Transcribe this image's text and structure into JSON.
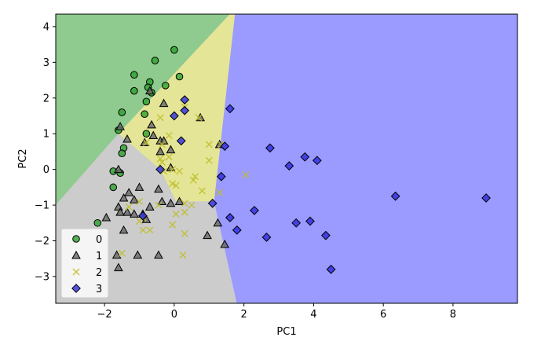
{
  "chart_data": {
    "type": "scatter",
    "title": "",
    "xlabel": "PC1",
    "ylabel": "PC2",
    "xlim": [
      -3.4,
      9.85
    ],
    "ylim": [
      -3.75,
      4.35
    ],
    "xticks": [
      -2,
      0,
      2,
      4,
      6,
      8
    ],
    "xtick_labels": [
      "−2",
      "0",
      "2",
      "4",
      "6",
      "8"
    ],
    "yticks": [
      -3,
      -2,
      -1,
      0,
      1,
      2,
      3,
      4
    ],
    "ytick_labels": [
      "−3",
      "−2",
      "−1",
      "0",
      "1",
      "2",
      "3",
      "4"
    ],
    "grid": false,
    "legend_position": "lower-left",
    "background": "decision-regions",
    "regions": [
      {
        "class": "0",
        "color": "#8fca8f",
        "polygon": [
          [
            -3.4,
            4.35
          ],
          [
            1.6,
            4.35
          ],
          [
            -1.6,
            1.0
          ],
          [
            -3.4,
            -1.0
          ]
        ]
      },
      {
        "class": "2",
        "color": "#e5e597",
        "polygon": [
          [
            1.6,
            4.35
          ],
          [
            1.75,
            4.35
          ],
          [
            1.15,
            -0.9
          ],
          [
            0.05,
            -0.9
          ],
          [
            -0.4,
            0.0
          ],
          [
            -1.6,
            1.0
          ]
        ]
      },
      {
        "class": "1",
        "color": "#cccccc",
        "polygon": [
          [
            -3.4,
            -1.0
          ],
          [
            -1.6,
            1.0
          ],
          [
            -0.4,
            0.0
          ],
          [
            0.05,
            -0.9
          ],
          [
            1.15,
            -0.9
          ],
          [
            1.8,
            -3.75
          ],
          [
            -3.4,
            -3.75
          ]
        ]
      },
      {
        "class": "3",
        "color": "#9a9aff",
        "polygon": [
          [
            1.75,
            4.35
          ],
          [
            9.85,
            4.35
          ],
          [
            9.85,
            -3.75
          ],
          [
            1.8,
            -3.75
          ],
          [
            1.15,
            -0.9
          ]
        ]
      }
    ],
    "series": [
      {
        "name": "0",
        "marker": "circle",
        "color": "#2ca02c",
        "points": [
          [
            0.0,
            3.35
          ],
          [
            -0.55,
            3.05
          ],
          [
            -1.15,
            2.65
          ],
          [
            -0.7,
            2.45
          ],
          [
            0.15,
            2.6
          ],
          [
            -0.75,
            2.3
          ],
          [
            -0.25,
            2.35
          ],
          [
            -1.15,
            2.2
          ],
          [
            -0.65,
            2.15
          ],
          [
            -0.8,
            1.9
          ],
          [
            -1.5,
            1.6
          ],
          [
            -0.85,
            1.55
          ],
          [
            -1.6,
            1.1
          ],
          [
            -0.8,
            1.0
          ],
          [
            -1.45,
            0.6
          ],
          [
            -1.5,
            0.45
          ],
          [
            -1.55,
            -0.1
          ],
          [
            -1.75,
            -0.05
          ],
          [
            -1.75,
            -0.5
          ],
          [
            -2.2,
            -1.5
          ]
        ]
      },
      {
        "name": "1",
        "marker": "triangle",
        "color": "#666666",
        "points": [
          [
            -0.7,
            2.2
          ],
          [
            -0.3,
            1.85
          ],
          [
            -1.55,
            1.2
          ],
          [
            -0.65,
            1.25
          ],
          [
            -1.35,
            0.85
          ],
          [
            -0.85,
            0.75
          ],
          [
            -0.4,
            0.8
          ],
          [
            -0.3,
            0.8
          ],
          [
            -0.4,
            0.5
          ],
          [
            -0.1,
            0.55
          ],
          [
            -0.1,
            0.05
          ],
          [
            -1.6,
            0.0
          ],
          [
            -1.0,
            -0.5
          ],
          [
            -1.3,
            -0.65
          ],
          [
            -1.15,
            -0.85
          ],
          [
            -1.45,
            -0.8
          ],
          [
            -0.35,
            -0.9
          ],
          [
            -0.1,
            -0.95
          ],
          [
            0.15,
            -0.9
          ],
          [
            -0.7,
            -1.05
          ],
          [
            -1.6,
            -1.05
          ],
          [
            -1.55,
            -1.2
          ],
          [
            -1.35,
            -1.2
          ],
          [
            -1.15,
            -1.25
          ],
          [
            -0.9,
            -1.25
          ],
          [
            -1.95,
            -1.35
          ],
          [
            -0.8,
            -1.4
          ],
          [
            1.25,
            -1.5
          ],
          [
            -1.45,
            -1.7
          ],
          [
            0.95,
            -1.85
          ],
          [
            1.45,
            -2.1
          ],
          [
            -1.05,
            -2.4
          ],
          [
            -1.65,
            -2.4
          ],
          [
            -0.45,
            -2.4
          ],
          [
            -1.6,
            -2.75
          ],
          [
            0.75,
            1.45
          ],
          [
            -0.6,
            0.95
          ],
          [
            1.3,
            0.7
          ],
          [
            -0.45,
            -0.55
          ]
        ]
      },
      {
        "name": "2",
        "marker": "x",
        "color": "#bfbf2e",
        "points": [
          [
            0.3,
            1.75
          ],
          [
            0.7,
            1.45
          ],
          [
            -0.4,
            1.45
          ],
          [
            -0.15,
            0.95
          ],
          [
            -0.8,
            0.75
          ],
          [
            -0.35,
            0.7
          ],
          [
            1.0,
            0.7
          ],
          [
            -0.15,
            0.35
          ],
          [
            -0.4,
            0.3
          ],
          [
            -0.35,
            0.2
          ],
          [
            1.0,
            0.25
          ],
          [
            1.35,
            0.7
          ],
          [
            -0.05,
            0.0
          ],
          [
            0.15,
            -0.05
          ],
          [
            -0.3,
            -0.05
          ],
          [
            0.6,
            -0.2
          ],
          [
            2.05,
            -0.15
          ],
          [
            -0.05,
            -0.4
          ],
          [
            0.05,
            -0.45
          ],
          [
            0.55,
            -0.3
          ],
          [
            0.8,
            -0.6
          ],
          [
            1.3,
            -0.65
          ],
          [
            -1.0,
            -0.9
          ],
          [
            0.3,
            -0.95
          ],
          [
            0.5,
            -1.0
          ],
          [
            -0.45,
            -1.0
          ],
          [
            -1.3,
            -1.05
          ],
          [
            -0.9,
            -1.35
          ],
          [
            0.3,
            -1.2
          ],
          [
            0.05,
            -1.25
          ],
          [
            -1.0,
            -1.45
          ],
          [
            -0.05,
            -1.55
          ],
          [
            -0.9,
            -1.7
          ],
          [
            -0.7,
            -1.7
          ],
          [
            0.3,
            -1.8
          ],
          [
            -1.5,
            -2.35
          ],
          [
            0.25,
            -2.4
          ]
        ]
      },
      {
        "name": "3",
        "marker": "diamond",
        "color": "#2b2bdf",
        "points": [
          [
            0.3,
            1.95
          ],
          [
            0.3,
            1.65
          ],
          [
            0.0,
            1.5
          ],
          [
            1.6,
            1.7
          ],
          [
            0.2,
            0.8
          ],
          [
            1.45,
            0.65
          ],
          [
            2.75,
            0.6
          ],
          [
            3.3,
            0.1
          ],
          [
            3.75,
            0.35
          ],
          [
            4.1,
            0.25
          ],
          [
            -0.4,
            0.0
          ],
          [
            1.35,
            -0.2
          ],
          [
            6.35,
            -0.75
          ],
          [
            8.95,
            -0.8
          ],
          [
            1.1,
            -0.95
          ],
          [
            2.3,
            -1.15
          ],
          [
            1.6,
            -1.35
          ],
          [
            3.9,
            -1.45
          ],
          [
            3.5,
            -1.5
          ],
          [
            1.8,
            -1.7
          ],
          [
            2.65,
            -1.9
          ],
          [
            4.35,
            -1.85
          ],
          [
            4.5,
            -2.8
          ],
          [
            -0.9,
            -1.3
          ]
        ]
      }
    ],
    "legend": [
      {
        "label": "0",
        "marker": "circle"
      },
      {
        "label": "1",
        "marker": "triangle"
      },
      {
        "label": "2",
        "marker": "x"
      },
      {
        "label": "3",
        "marker": "diamond"
      }
    ]
  }
}
